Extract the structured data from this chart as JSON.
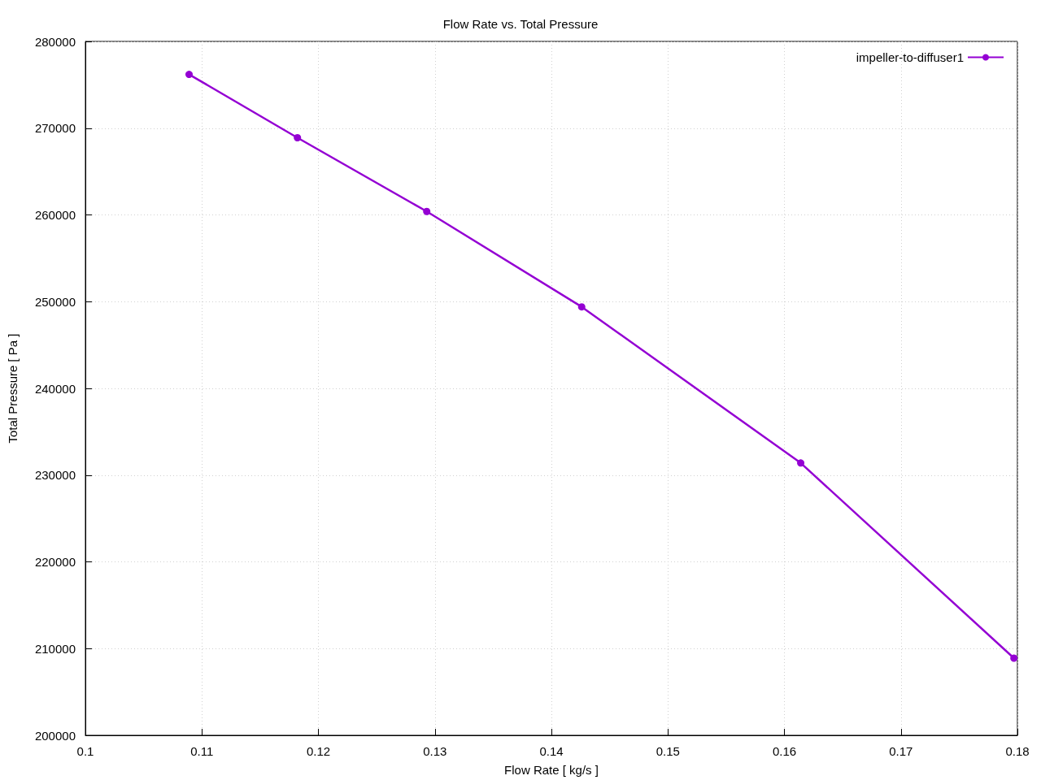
{
  "chart_data": {
    "type": "line",
    "title": "Flow Rate vs. Total Pressure",
    "xlabel": "Flow Rate [ kg/s ]",
    "ylabel": "Total Pressure [ Pa ]",
    "x": [
      0.1089,
      0.1182,
      0.1293,
      0.1426,
      0.1614,
      0.1797
    ],
    "series": [
      {
        "name": "impeller-to-diffuser1",
        "color": "#9400d3",
        "values": [
          276200,
          268900,
          260400,
          249400,
          231400,
          208900
        ]
      }
    ],
    "xlim": [
      0.1,
      0.18
    ],
    "xticks": [
      0.1,
      0.11,
      0.12,
      0.13,
      0.14,
      0.15,
      0.16,
      0.17,
      0.18
    ],
    "ylim": [
      200000,
      280000
    ],
    "yticks": [
      200000,
      210000,
      220000,
      230000,
      240000,
      250000,
      260000,
      270000,
      280000
    ],
    "grid": true,
    "legend": "top right",
    "marker": "circle",
    "line_style": "solid"
  }
}
